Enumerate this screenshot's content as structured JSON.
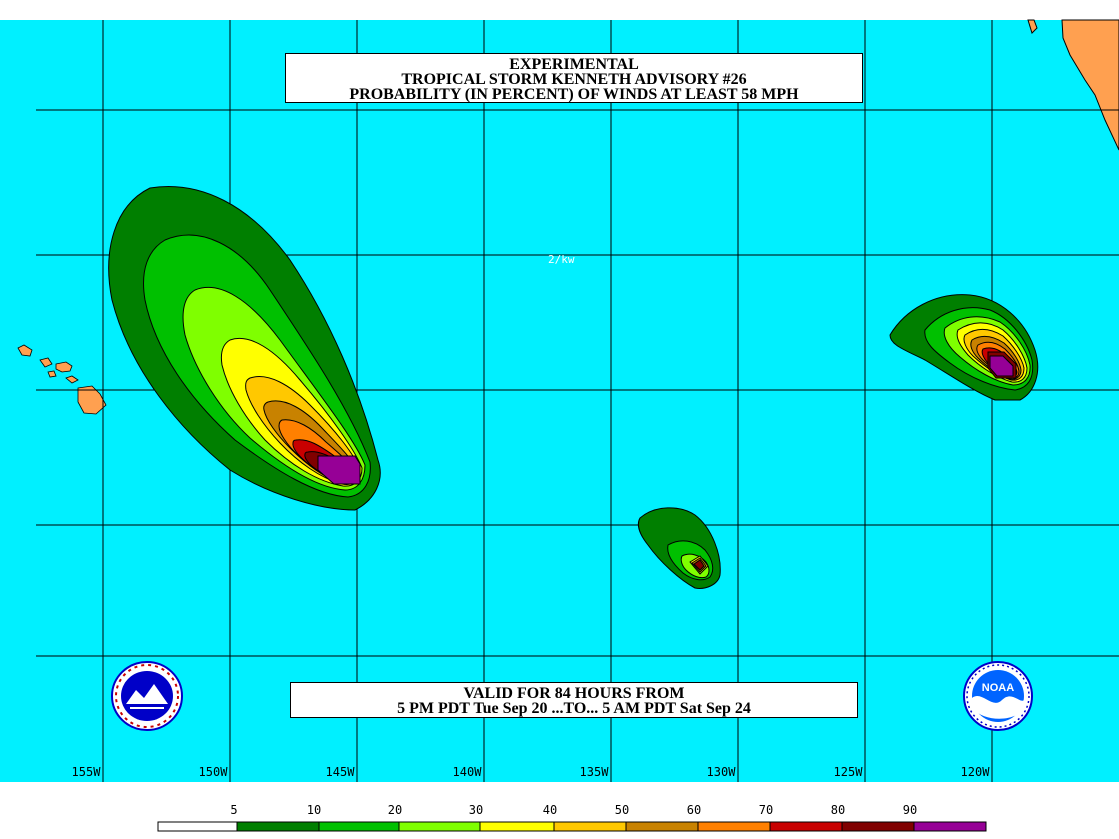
{
  "title": {
    "line1": "EXPERIMENTAL",
    "line2": "TROPICAL STORM KENNETH ADVISORY #26",
    "line3": "PROBABILITY (IN PERCENT) OF WINDS AT LEAST 58 MPH"
  },
  "valid": {
    "line1": "VALID FOR 84 HOURS FROM",
    "line2": "5 PM PDT Tue Sep 20 ...TO... 5 AM PDT Sat Sep 24"
  },
  "watermark": "2/kw",
  "longitude_labels": [
    "155W",
    "150W",
    "145W",
    "140W",
    "135W",
    "130W",
    "125W",
    "120W"
  ],
  "legend": {
    "labels": [
      "5",
      "10",
      "20",
      "30",
      "40",
      "50",
      "60",
      "70",
      "80",
      "90"
    ],
    "colors": [
      "#ffffff",
      "#007f00",
      "#00c000",
      "#7fff00",
      "#ffff00",
      "#ffc800",
      "#c88200",
      "#ff8000",
      "#c80000",
      "#800000",
      "#960096"
    ]
  },
  "colors": {
    "ocean": "#00f0ff",
    "land": "#ffa050",
    "grid": "#000000"
  },
  "logos": {
    "left": "nws-logo-icon",
    "right": "noaa-logo-icon",
    "right_text": "NOAA"
  }
}
